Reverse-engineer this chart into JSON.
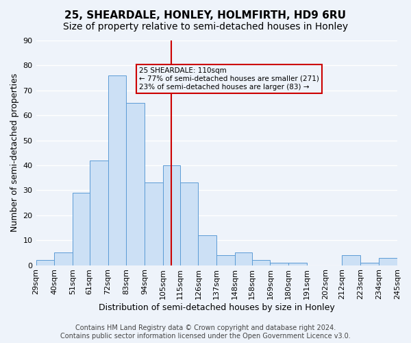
{
  "title": "25, SHEARDALE, HONLEY, HOLMFIRTH, HD9 6RU",
  "subtitle": "Size of property relative to semi-detached houses in Honley",
  "xlabel": "Distribution of semi-detached houses by size in Honley",
  "ylabel": "Number of semi-detached properties",
  "bar_color": "#cce0f5",
  "bar_edge_color": "#5b9bd5",
  "bg_color": "#eef3fa",
  "grid_color": "white",
  "annotation_text": "25 SHEARDALE: 110sqm\n← 77% of semi-detached houses are smaller (271)\n23% of semi-detached houses are larger (83) →",
  "annotation_box_edge": "#cc0000",
  "vline_x": 110,
  "vline_color": "#cc0000",
  "bin_edges": [
    29,
    40,
    51,
    61,
    72,
    83,
    94,
    105,
    115,
    126,
    137,
    148,
    158,
    169,
    180,
    191,
    202,
    212,
    223,
    234,
    245
  ],
  "bin_labels": [
    "29sqm",
    "40sqm",
    "51sqm",
    "61sqm",
    "72sqm",
    "83sqm",
    "94sqm",
    "105sqm",
    "115sqm",
    "126sqm",
    "137sqm",
    "148sqm",
    "158sqm",
    "169sqm",
    "180sqm",
    "191sqm",
    "202sqm",
    "212sqm",
    "223sqm",
    "234sqm",
    "245sqm"
  ],
  "counts": [
    2,
    5,
    29,
    42,
    76,
    65,
    33,
    40,
    33,
    12,
    4,
    5,
    2,
    1,
    1,
    0,
    0,
    4,
    1,
    3
  ],
  "ylim": [
    0,
    90
  ],
  "yticks": [
    0,
    10,
    20,
    30,
    40,
    50,
    60,
    70,
    80,
    90
  ],
  "footer": "Contains HM Land Registry data © Crown copyright and database right 2024.\nContains public sector information licensed under the Open Government Licence v3.0.",
  "title_fontsize": 11,
  "subtitle_fontsize": 10,
  "tick_fontsize": 8,
  "label_fontsize": 9,
  "footer_fontsize": 7
}
